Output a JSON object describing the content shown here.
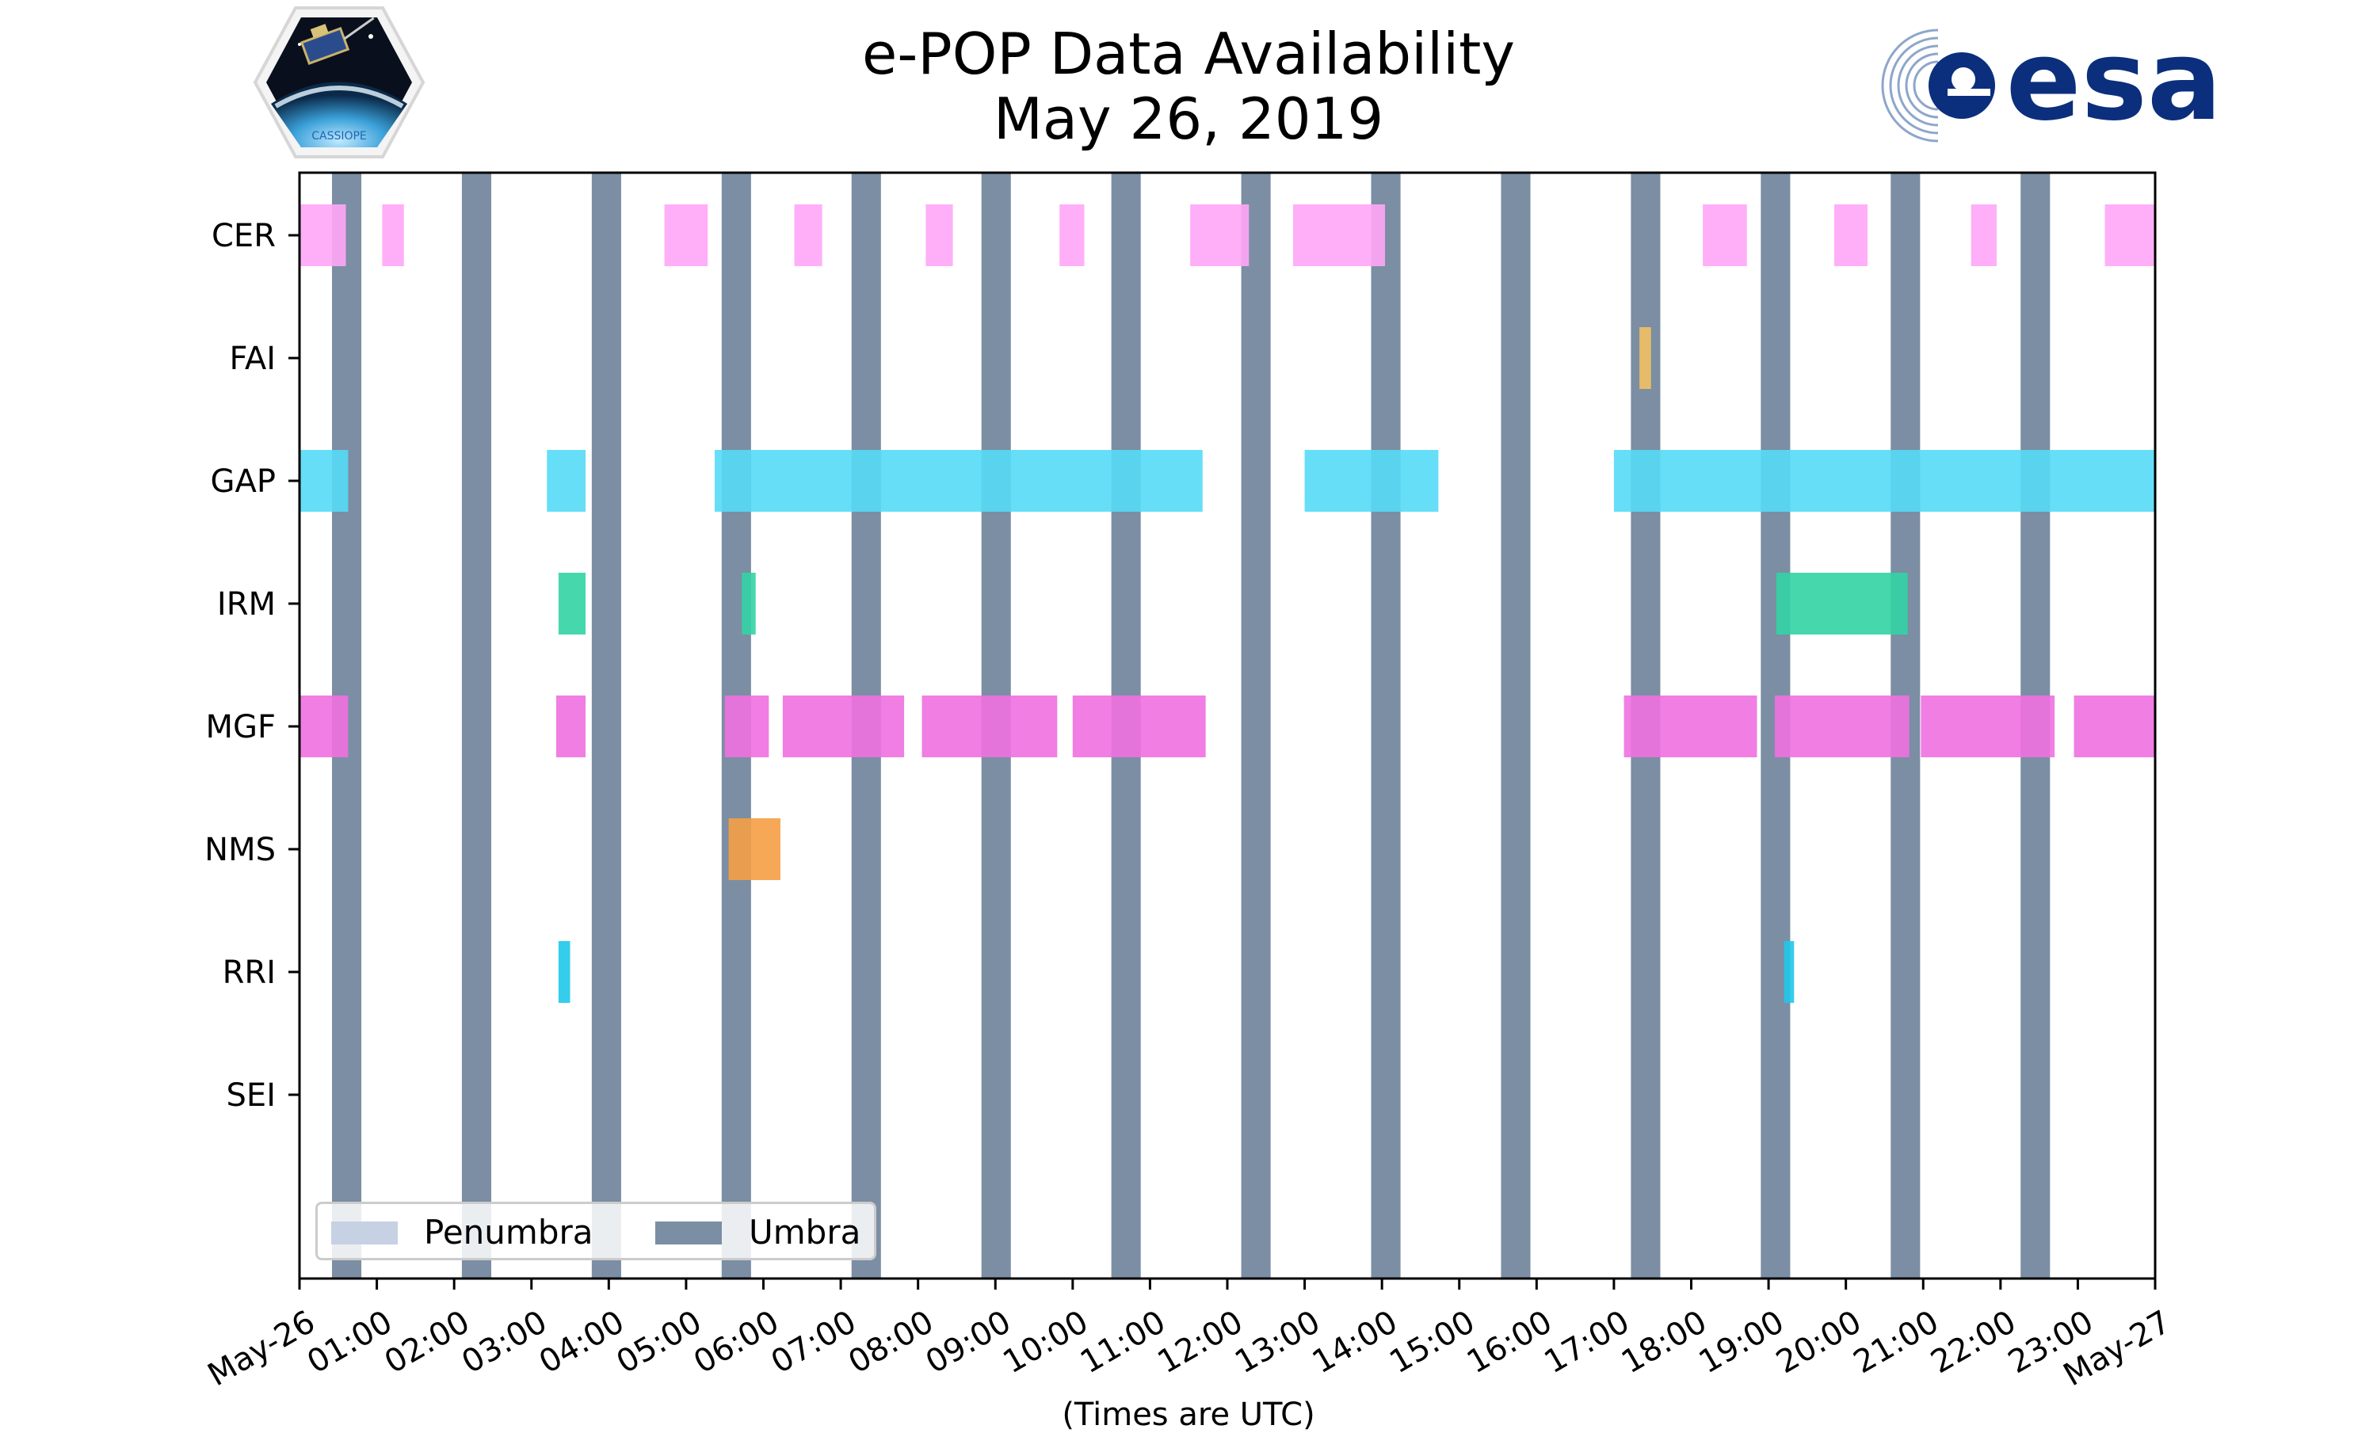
{
  "title": {
    "line1": "e-POP Data Availability",
    "line2": "May 26, 2019"
  },
  "xlabel": "(Times are UTC)",
  "logos": {
    "left_text": "CASSIOPE",
    "right_text": "esa"
  },
  "legend": {
    "placement": "lower-left",
    "items": [
      {
        "label": "Penumbra",
        "color": "#c6d2e3"
      },
      {
        "label": "Umbra",
        "color": "#7b8ea3"
      }
    ]
  },
  "chart_data": {
    "type": "timeline",
    "title": "e-POP Data Availability\nMay 26, 2019",
    "xlabel": "(Times are UTC)",
    "x_unit": "hours UTC",
    "x_range": [
      0,
      24
    ],
    "x_ticks": [
      "May-26",
      "01:00",
      "02:00",
      "03:00",
      "04:00",
      "05:00",
      "06:00",
      "07:00",
      "08:00",
      "09:00",
      "10:00",
      "11:00",
      "12:00",
      "13:00",
      "14:00",
      "15:00",
      "16:00",
      "17:00",
      "18:00",
      "19:00",
      "20:00",
      "21:00",
      "22:00",
      "23:00",
      "May-27"
    ],
    "categories": [
      "CER",
      "FAI",
      "GAP",
      "IRM",
      "MGF",
      "NMS",
      "RRI",
      "SEI"
    ],
    "umbra_color": "#7b8ea3",
    "umbra": [
      [
        0.42,
        0.8
      ],
      [
        2.1,
        2.48
      ],
      [
        3.78,
        4.16
      ],
      [
        5.46,
        5.84
      ],
      [
        7.14,
        7.52
      ],
      [
        8.82,
        9.2
      ],
      [
        10.5,
        10.88
      ],
      [
        12.18,
        12.56
      ],
      [
        13.86,
        14.24
      ],
      [
        15.54,
        15.92
      ],
      [
        17.22,
        17.6
      ],
      [
        18.9,
        19.28
      ],
      [
        20.58,
        20.96
      ],
      [
        22.26,
        22.64
      ]
    ],
    "series": [
      {
        "name": "CER",
        "color": "#ffa6f7",
        "intervals": [
          [
            0.0,
            0.6
          ],
          [
            1.07,
            1.35
          ],
          [
            4.72,
            5.28
          ],
          [
            6.4,
            6.76
          ],
          [
            8.1,
            8.45
          ],
          [
            9.83,
            10.15
          ],
          [
            11.52,
            12.28
          ],
          [
            12.85,
            14.04
          ],
          [
            18.15,
            18.72
          ],
          [
            19.85,
            20.28
          ],
          [
            21.62,
            21.95
          ],
          [
            23.35,
            24.0
          ]
        ]
      },
      {
        "name": "FAI",
        "color": "#f2c063",
        "intervals": [
          [
            17.33,
            17.48
          ]
        ]
      },
      {
        "name": "GAP",
        "color": "#55daf6",
        "intervals": [
          [
            0.0,
            0.63
          ],
          [
            3.2,
            3.7
          ],
          [
            5.37,
            11.68
          ],
          [
            13.0,
            14.73
          ],
          [
            17.0,
            24.0
          ]
        ]
      },
      {
        "name": "IRM",
        "color": "#33d3a4",
        "intervals": [
          [
            3.35,
            3.7
          ],
          [
            5.72,
            5.9
          ],
          [
            19.1,
            20.8
          ]
        ]
      },
      {
        "name": "MGF",
        "color": "#f070e0",
        "intervals": [
          [
            0.0,
            0.63
          ],
          [
            3.32,
            3.7
          ],
          [
            5.5,
            6.07
          ],
          [
            6.25,
            7.82
          ],
          [
            8.05,
            9.8
          ],
          [
            10.0,
            11.72
          ],
          [
            17.13,
            18.85
          ],
          [
            19.08,
            20.82
          ],
          [
            20.97,
            22.7
          ],
          [
            22.95,
            24.0
          ]
        ]
      },
      {
        "name": "NMS",
        "color": "#f59e45",
        "intervals": [
          [
            5.55,
            6.22
          ]
        ]
      },
      {
        "name": "RRI",
        "color": "#1fc8ea",
        "intervals": [
          [
            3.35,
            3.5
          ],
          [
            19.2,
            19.33
          ]
        ]
      },
      {
        "name": "SEI",
        "color": "#888888",
        "intervals": []
      }
    ]
  }
}
